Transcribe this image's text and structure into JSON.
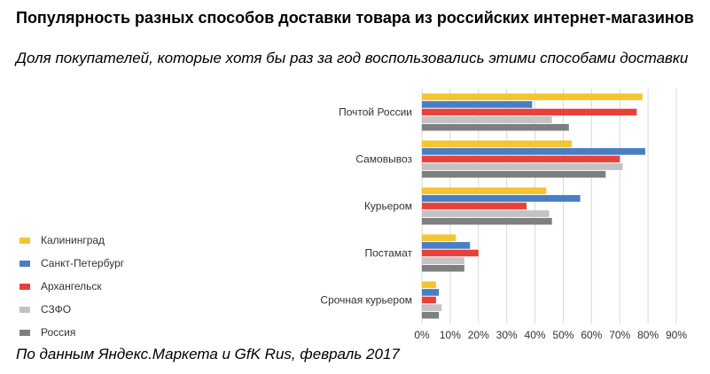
{
  "title": "Популярность разных способов доставки товара из российских интернет-магазинов",
  "subtitle": "Доля покупателей, которые хотя бы раз за год воспользовались этими способами доставки",
  "footnote": "По данным Яндекс.Маркета и GfK Rus, февраль 2017",
  "chart_data": {
    "type": "bar",
    "orientation": "horizontal",
    "categories": [
      "Почтой России",
      "Самовывоз",
      "Курьером",
      "Постамат",
      "Срочная курьером"
    ],
    "series": [
      {
        "name": "Калининград",
        "color": "#f5c531",
        "values": [
          78,
          53,
          44,
          12,
          5
        ]
      },
      {
        "name": "Санкт-Петербург",
        "color": "#4a7ec2",
        "values": [
          39,
          79,
          56,
          17,
          6
        ]
      },
      {
        "name": "Архангельск",
        "color": "#e8413a",
        "values": [
          76,
          70,
          37,
          20,
          5
        ]
      },
      {
        "name": "СЗФО",
        "color": "#c3c3c3",
        "values": [
          46,
          71,
          45,
          15,
          7
        ]
      },
      {
        "name": "Россия",
        "color": "#7f7f7f",
        "values": [
          52,
          65,
          46,
          15,
          6
        ]
      }
    ],
    "xlim": [
      0,
      90
    ],
    "xticks": [
      "0%",
      "10%",
      "20%",
      "30%",
      "40%",
      "50%",
      "60%",
      "70%",
      "80%",
      "90%"
    ],
    "grid": true,
    "legend_position": "left"
  }
}
